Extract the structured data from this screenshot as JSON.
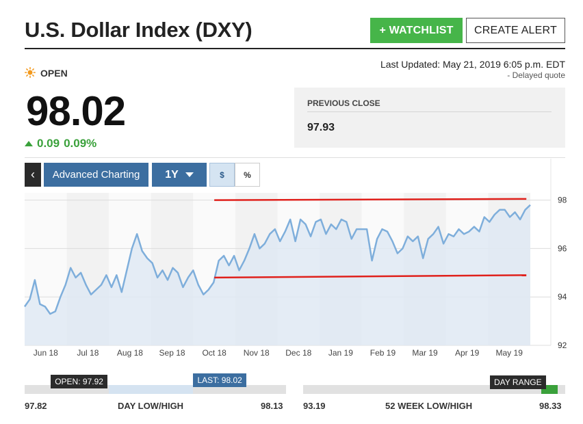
{
  "header": {
    "title": "U.S. Dollar Index (DXY)",
    "watchlist_label": "+ WATCHLIST",
    "alert_label": "CREATE ALERT"
  },
  "status": {
    "label": "OPEN",
    "icon": "sun-icon"
  },
  "last_updated": "Last Updated: May 21, 2019 6:05 p.m. EDT",
  "delayed_note": "- Delayed quote",
  "quote": {
    "price": "98.02",
    "change": "0.09",
    "change_pct": "0.09%"
  },
  "previous_close": {
    "label": "PREVIOUS CLOSE",
    "value": "97.93"
  },
  "toolbar": {
    "back_icon": "chevron-left-icon",
    "advanced_label": "Advanced Charting",
    "range_label": "1Y",
    "dollar_label": "$",
    "percent_label": "%"
  },
  "colors": {
    "accent_green": "#46b549",
    "toolbar_blue": "#3c6ea0",
    "series_line": "#7eaedb",
    "series_fill": "#dfe9f3",
    "annotation_red": "#e0201b"
  },
  "chart_data": {
    "type": "area",
    "x_ticks": [
      "Jun 18",
      "Jul 18",
      "Aug 18",
      "Sep 18",
      "Oct 18",
      "Nov 18",
      "Dec 18",
      "Jan 19",
      "Feb 19",
      "Mar 19",
      "Apr 19",
      "May 19"
    ],
    "y_ticks": [
      "98",
      "96",
      "94",
      "92"
    ],
    "ylim": [
      92,
      98.3
    ],
    "grid": true,
    "series": [
      {
        "values": [
          93.6,
          93.9,
          94.7,
          93.7,
          93.6,
          93.3,
          93.4,
          94.0,
          94.5,
          95.2,
          94.8,
          95.0,
          94.5,
          94.1,
          94.3,
          94.5,
          94.9,
          94.4,
          94.9,
          94.2,
          95.1,
          96.0,
          96.6,
          95.9,
          95.6,
          95.4,
          94.8,
          95.1,
          94.7,
          95.2,
          95.0,
          94.4,
          94.8,
          95.1,
          94.5,
          94.1,
          94.3,
          94.6,
          95.5,
          95.7,
          95.3,
          95.7,
          95.1,
          95.5,
          96.0,
          96.6,
          96.0,
          96.2,
          96.6,
          96.8,
          96.3,
          96.7,
          97.2,
          96.3,
          97.2,
          97.0,
          96.5,
          97.1,
          97.2,
          96.6,
          97.0,
          96.8,
          97.2,
          97.1,
          96.4,
          96.8,
          96.8,
          96.8,
          95.5,
          96.4,
          96.8,
          96.7,
          96.3,
          95.8,
          96.0,
          96.5,
          96.3,
          96.5,
          95.6,
          96.4,
          96.6,
          96.9,
          96.2,
          96.6,
          96.5,
          96.8,
          96.6,
          96.7,
          96.9,
          96.7,
          97.3,
          97.1,
          97.4,
          97.6,
          97.6,
          97.3,
          97.5,
          97.2,
          97.6,
          97.8
        ]
      }
    ],
    "annotations": [
      {
        "type": "line",
        "from": [
          "Oct 18",
          98.0
        ],
        "to": [
          "May 19",
          98.05
        ]
      },
      {
        "type": "line",
        "from": [
          "Oct 18",
          94.8
        ],
        "to": [
          "May 19",
          94.9
        ]
      }
    ]
  },
  "day_range": {
    "open_label": "OPEN: 97.92",
    "last_label": "LAST: 98.02",
    "low": "97.82",
    "high": "98.13",
    "caption": "DAY LOW/HIGH",
    "open": 97.92,
    "last": 98.02
  },
  "week52_range": {
    "flag_label": "DAY RANGE",
    "low": "93.19",
    "high": "98.33",
    "caption": "52 WEEK LOW/HIGH",
    "day_range_position": 0.97
  }
}
